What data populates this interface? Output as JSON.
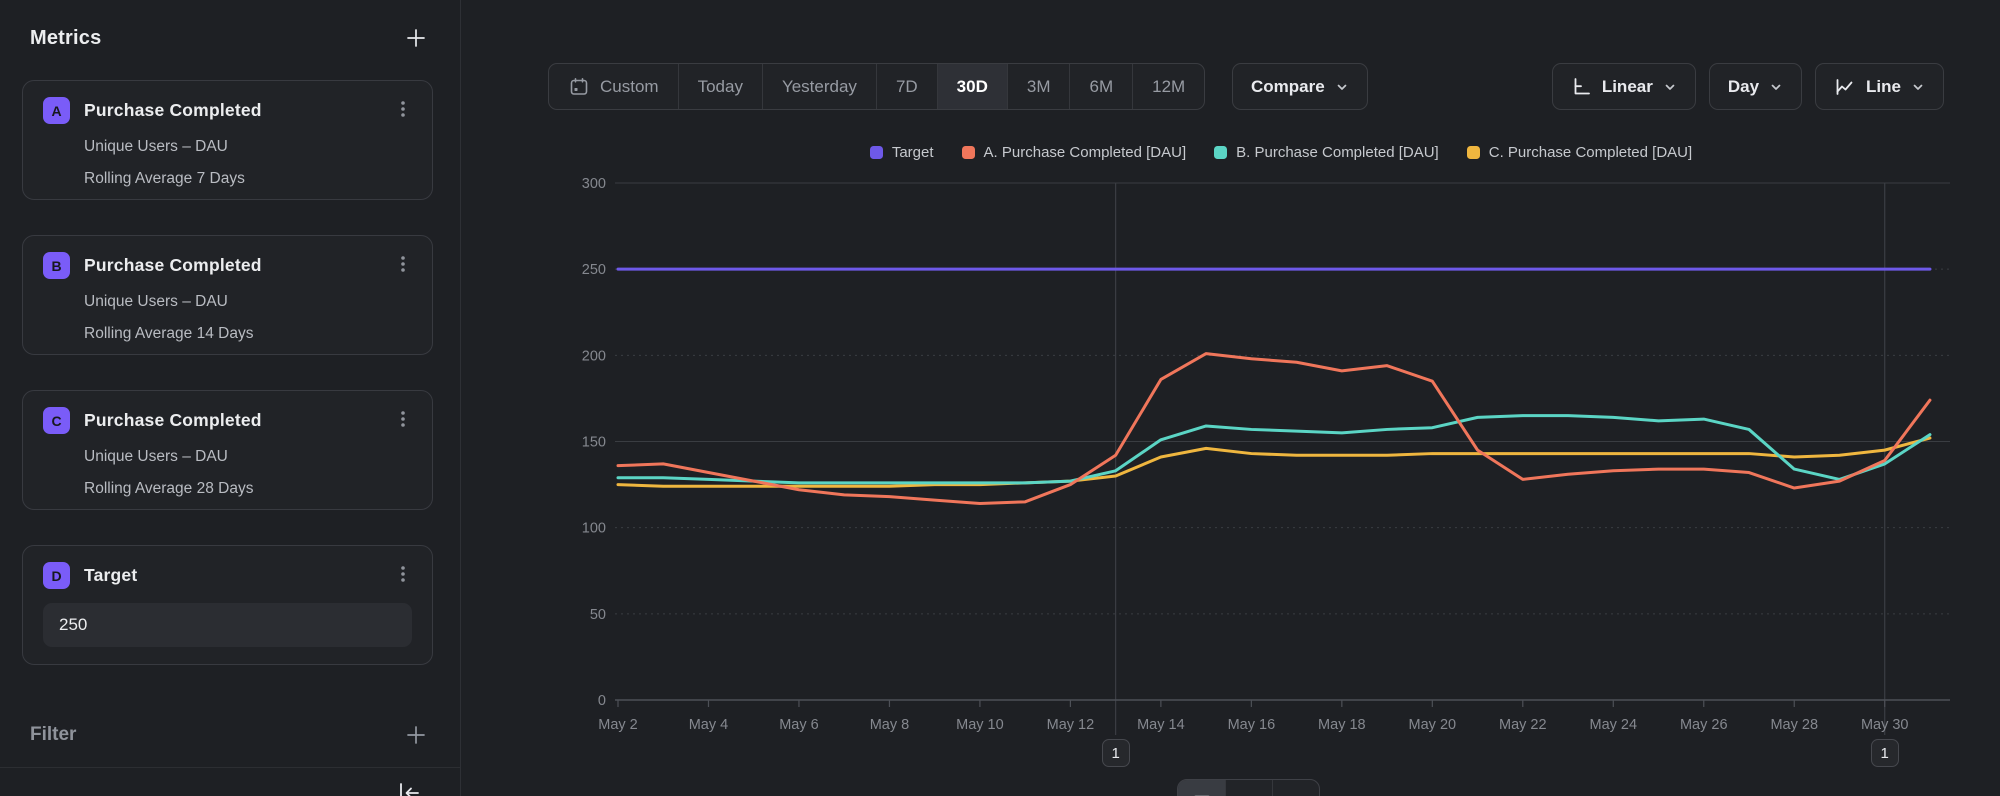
{
  "sidebar": {
    "title": "Metrics",
    "metrics": [
      {
        "badge": "A",
        "title": "Purchase Completed",
        "rows": [
          "Unique Users – DAU",
          "Rolling Average 7 Days"
        ]
      },
      {
        "badge": "B",
        "title": "Purchase Completed",
        "rows": [
          "Unique Users – DAU",
          "Rolling Average 14 Days"
        ]
      },
      {
        "badge": "C",
        "title": "Purchase Completed",
        "rows": [
          "Unique Users – DAU",
          "Rolling Average 28 Days"
        ]
      },
      {
        "badge": "D",
        "title": "Target",
        "value": "250"
      }
    ],
    "filter_label": "Filter"
  },
  "toolbar": {
    "ranges": [
      "Custom",
      "Today",
      "Yesterday",
      "7D",
      "30D",
      "3M",
      "6M",
      "12M"
    ],
    "active_range": "30D",
    "compare_label": "Compare",
    "scale_label": "Linear",
    "interval_label": "Day",
    "chart_type_label": "Line"
  },
  "chart_data": {
    "type": "line",
    "title": "",
    "xlabel": "",
    "ylabel": "",
    "ylim": [
      0,
      300
    ],
    "yticks": [
      0,
      50,
      100,
      150,
      200,
      250,
      300
    ],
    "grid": true,
    "legend_position": "top",
    "x": [
      "May 2",
      "May 3",
      "May 4",
      "May 5",
      "May 6",
      "May 7",
      "May 8",
      "May 9",
      "May 10",
      "May 11",
      "May 12",
      "May 13",
      "May 14",
      "May 15",
      "May 16",
      "May 17",
      "May 18",
      "May 19",
      "May 20",
      "May 21",
      "May 22",
      "May 23",
      "May 24",
      "May 25",
      "May 26",
      "May 27",
      "May 28",
      "May 29",
      "May 30",
      "May 31"
    ],
    "x_label_step": 2,
    "series": [
      {
        "name": "Target",
        "color": "#6E59E8",
        "values": [
          250,
          250,
          250,
          250,
          250,
          250,
          250,
          250,
          250,
          250,
          250,
          250,
          250,
          250,
          250,
          250,
          250,
          250,
          250,
          250,
          250,
          250,
          250,
          250,
          250,
          250,
          250,
          250,
          250,
          250
        ]
      },
      {
        "name": "A. Purchase Completed [DAU]",
        "color": "#F0765B",
        "values": [
          136,
          137,
          132,
          127,
          122,
          119,
          118,
          116,
          114,
          115,
          125,
          142,
          186,
          201,
          198,
          196,
          191,
          194,
          185,
          145,
          128,
          131,
          133,
          134,
          134,
          132,
          123,
          127,
          139,
          174
        ]
      },
      {
        "name": "B. Purchase Completed [DAU]",
        "color": "#5BD5C5",
        "values": [
          129,
          129,
          128,
          127,
          126,
          126,
          126,
          126,
          126,
          126,
          127,
          133,
          151,
          159,
          157,
          156,
          155,
          157,
          158,
          164,
          165,
          165,
          164,
          162,
          163,
          157,
          134,
          128,
          137,
          154
        ]
      },
      {
        "name": "C. Purchase Completed [DAU]",
        "color": "#EFB63F",
        "values": [
          125,
          124,
          124,
          124,
          124,
          124,
          124,
          125,
          125,
          126,
          127,
          130,
          141,
          146,
          143,
          142,
          142,
          142,
          143,
          143,
          143,
          143,
          143,
          143,
          143,
          143,
          141,
          142,
          145,
          152
        ]
      }
    ],
    "annotations": [
      {
        "label": "1",
        "x_index": 11
      },
      {
        "label": "1",
        "x_index": 28
      }
    ]
  },
  "bottom_toggle": {
    "options": [
      {
        "icon": "chart-view-icon",
        "active": true
      },
      {
        "icon": "table-view-icon",
        "active": false
      },
      {
        "icon": "breakdown-view-icon",
        "active": false
      }
    ]
  }
}
